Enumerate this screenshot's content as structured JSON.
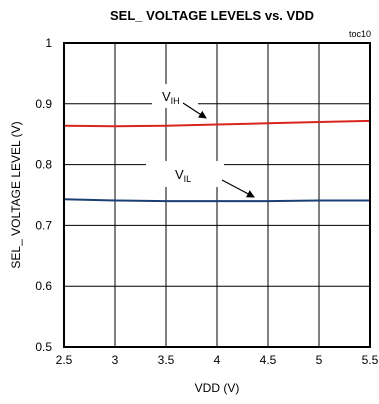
{
  "chart_data": {
    "type": "line",
    "title": "SEL_ VOLTAGE LEVELS vs. VDD",
    "figure_tag": "toc10",
    "xlabel": "VDD (V)",
    "ylabel": "SEL_ VOLTAGE LEVEL (V)",
    "xlim": [
      2.5,
      5.5
    ],
    "ylim": [
      0.5,
      1.0
    ],
    "x_ticks": [
      "2.5",
      "3",
      "3.5",
      "4",
      "4.5",
      "5",
      "5.5"
    ],
    "y_ticks": [
      "0.5",
      "0.6",
      "0.7",
      "0.8",
      "0.9",
      "1"
    ],
    "grid": true,
    "series": [
      {
        "name_main": "V",
        "name_sub": "IH",
        "color": "#d9261c",
        "x": [
          2.5,
          3.0,
          3.5,
          4.0,
          4.5,
          5.0,
          5.5
        ],
        "y": [
          0.864,
          0.863,
          0.864,
          0.866,
          0.868,
          0.87,
          0.872
        ]
      },
      {
        "name_main": "V",
        "name_sub": "IL",
        "color": "#1b3f73",
        "x": [
          2.5,
          3.0,
          3.5,
          4.0,
          4.5,
          5.0,
          5.5
        ],
        "y": [
          0.743,
          0.741,
          0.74,
          0.74,
          0.74,
          0.741,
          0.741
        ]
      }
    ]
  }
}
